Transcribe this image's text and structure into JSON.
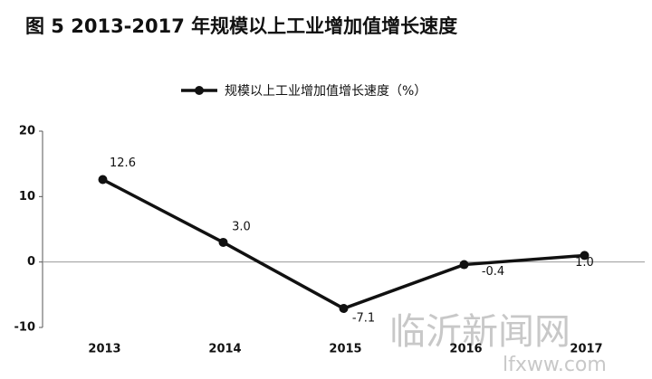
{
  "chart_data": {
    "type": "line",
    "title": "图 5  2013-2017 年规模以上工业增加值增长速度",
    "categories": [
      "2013",
      "2014",
      "2015",
      "2016",
      "2017"
    ],
    "series": [
      {
        "name": "规模以上工业增加值增长速度（%）",
        "color": "#111111",
        "values": [
          12.6,
          3.0,
          -7.1,
          -0.4,
          1.0
        ],
        "value_labels": [
          "12.6",
          "3.0",
          "-7.1",
          "-0.4",
          "1.0"
        ]
      }
    ],
    "ylim": [
      -10,
      20
    ],
    "yticks": [
      20,
      10,
      0,
      -10
    ],
    "legend": "top",
    "watermark": [
      "临沂新闻网",
      "lfxww.com"
    ]
  }
}
